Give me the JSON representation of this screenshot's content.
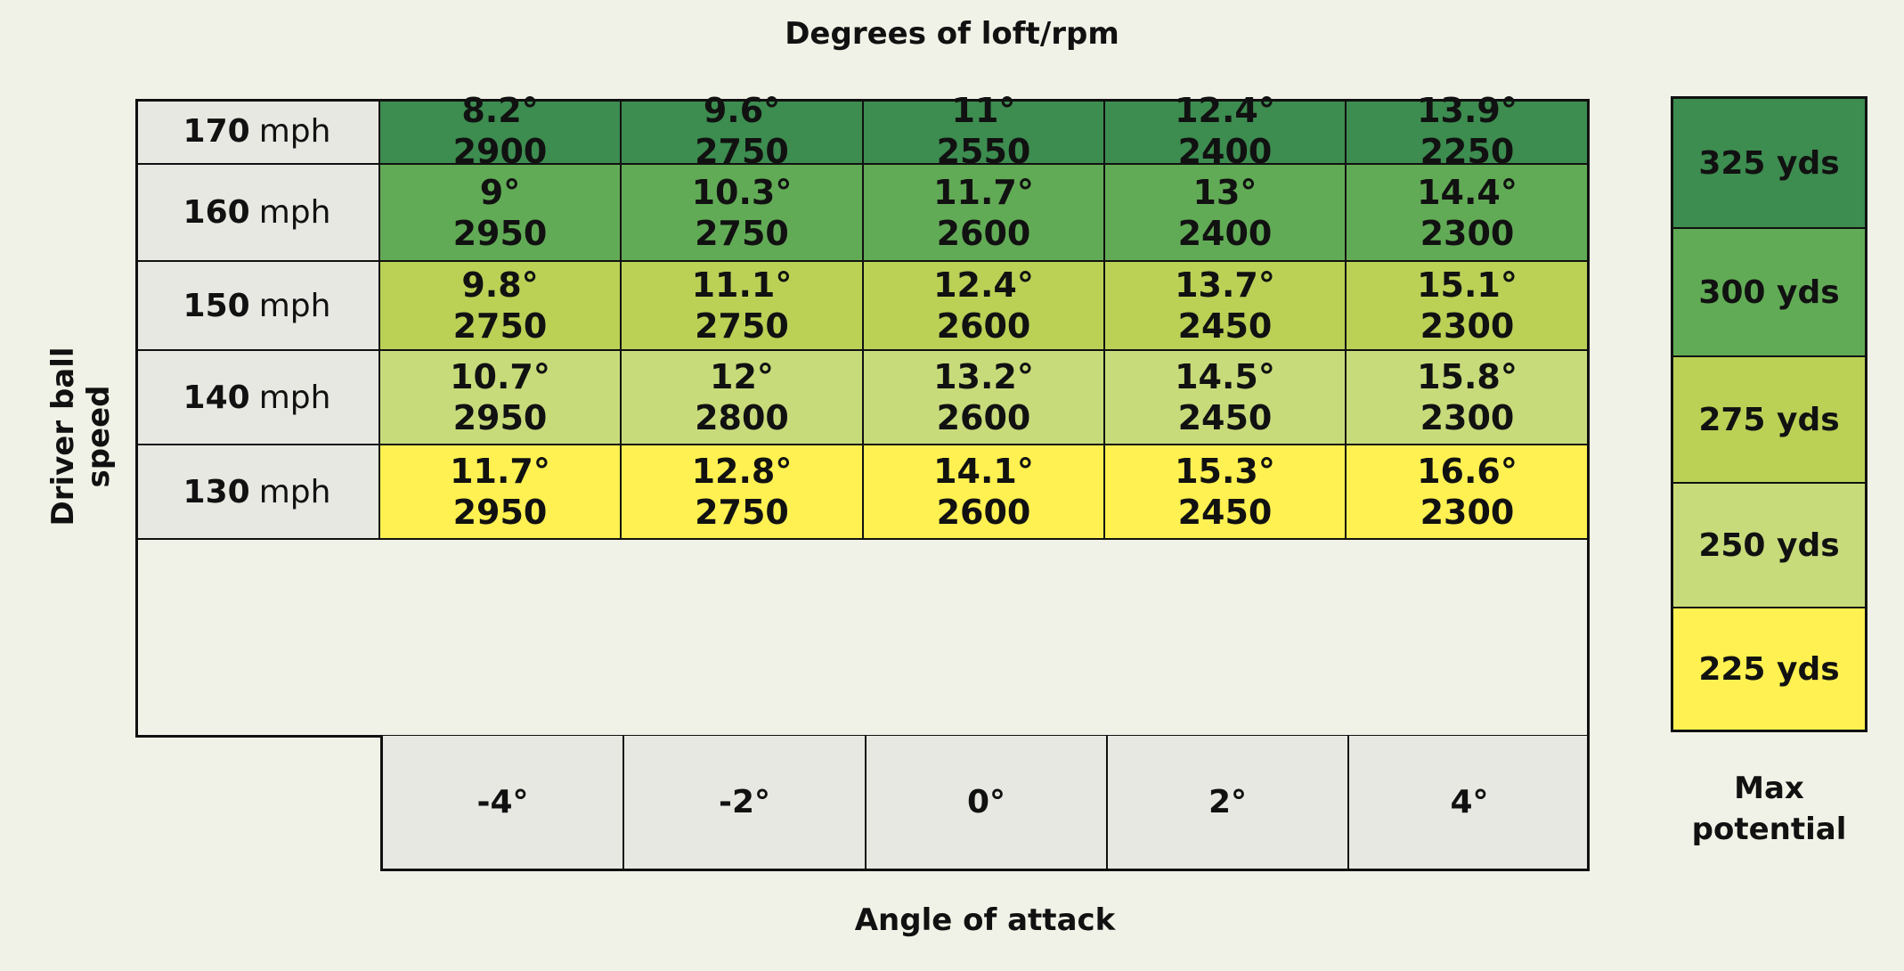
{
  "chart_data": {
    "type": "table",
    "title": "Degrees of loft/rpm",
    "xlabel": "Angle of attack",
    "ylabel": "Driver ball speed",
    "legend_title": "Max potential",
    "columns": [
      "-4°",
      "-2°",
      "0°",
      "2°",
      "4°"
    ],
    "rows": [
      {
        "speed": "170",
        "unit": "mph",
        "potential": "325 yds",
        "color": "#3d8c50",
        "cells": [
          {
            "loft": "8.2°",
            "rpm": "2900"
          },
          {
            "loft": "9.6°",
            "rpm": "2750"
          },
          {
            "loft": "11°",
            "rpm": "2550"
          },
          {
            "loft": "12.4°",
            "rpm": "2400"
          },
          {
            "loft": "13.9°",
            "rpm": "2250"
          }
        ]
      },
      {
        "speed": "160",
        "unit": "mph",
        "potential": "300 yds",
        "color": "#62ab56",
        "cells": [
          {
            "loft": "9°",
            "rpm": "2950"
          },
          {
            "loft": "10.3°",
            "rpm": "2750"
          },
          {
            "loft": "11.7°",
            "rpm": "2600"
          },
          {
            "loft": "13°",
            "rpm": "2400"
          },
          {
            "loft": "14.4°",
            "rpm": "2300"
          }
        ]
      },
      {
        "speed": "150",
        "unit": "mph",
        "potential": "275 yds",
        "color": "#bad156",
        "cells": [
          {
            "loft": "9.8°",
            "rpm": "2750"
          },
          {
            "loft": "11.1°",
            "rpm": "2750"
          },
          {
            "loft": "12.4°",
            "rpm": "2600"
          },
          {
            "loft": "13.7°",
            "rpm": "2450"
          },
          {
            "loft": "15.1°",
            "rpm": "2300"
          }
        ]
      },
      {
        "speed": "140",
        "unit": "mph",
        "potential": "250 yds",
        "color": "#c8db7b",
        "cells": [
          {
            "loft": "10.7°",
            "rpm": "2950"
          },
          {
            "loft": "12°",
            "rpm": "2800"
          },
          {
            "loft": "13.2°",
            "rpm": "2600"
          },
          {
            "loft": "14.5°",
            "rpm": "2450"
          },
          {
            "loft": "15.8°",
            "rpm": "2300"
          }
        ]
      },
      {
        "speed": "130",
        "unit": "mph",
        "potential": "225 yds",
        "color": "#fef151",
        "cells": [
          {
            "loft": "11.7°",
            "rpm": "2950"
          },
          {
            "loft": "12.8°",
            "rpm": "2750"
          },
          {
            "loft": "14.1°",
            "rpm": "2600"
          },
          {
            "loft": "15.3°",
            "rpm": "2450"
          },
          {
            "loft": "16.6°",
            "rpm": "2300"
          }
        ]
      }
    ]
  }
}
